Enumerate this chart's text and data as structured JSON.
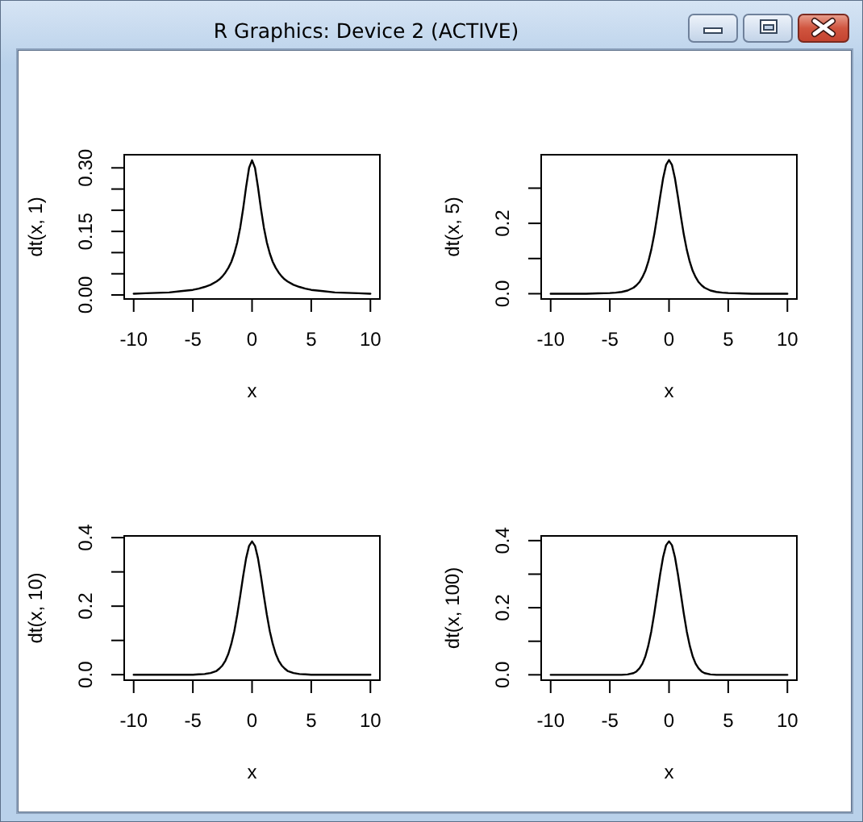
{
  "chart_data": [
    {
      "type": "other",
      "title": "R Graphics: Device 2 (ACTIVE)"
    },
    {
      "type": "line",
      "xlabel": "x",
      "ylabel": "dt(x, 1)",
      "color": "#000000",
      "xlim": [
        -10.8,
        10.8
      ],
      "ylim": [
        -0.0095,
        0.331
      ],
      "xticks": [
        -10,
        -5,
        0,
        5,
        10
      ],
      "yticks": [
        {
          "value": 0,
          "label": "0.00"
        },
        {
          "value": 0.05,
          "label": null
        },
        {
          "value": 0.1,
          "label": null
        },
        0.15,
        {
          "value": 0.2,
          "label": null
        },
        {
          "value": 0.25,
          "label": null
        },
        {
          "value": 0.3,
          "label": "0.30"
        }
      ],
      "x": [
        -10,
        -9,
        -8,
        -7,
        -6,
        -5,
        -4.5,
        -4,
        -3.5,
        -3,
        -2.75,
        -2.5,
        -2.25,
        -2,
        -1.75,
        -1.5,
        -1.25,
        -1,
        -0.75,
        -0.5,
        -0.25,
        0,
        0.25,
        0.5,
        0.75,
        1,
        1.25,
        1.5,
        1.75,
        2,
        2.25,
        2.5,
        2.75,
        3,
        3.5,
        4,
        4.5,
        5,
        6,
        7,
        8,
        9,
        10
      ],
      "values": [
        0.003,
        0.004,
        0.005,
        0.006,
        0.009,
        0.012,
        0.015,
        0.019,
        0.024,
        0.032,
        0.037,
        0.044,
        0.053,
        0.064,
        0.078,
        0.098,
        0.124,
        0.159,
        0.204,
        0.255,
        0.3,
        0.318,
        0.3,
        0.255,
        0.204,
        0.159,
        0.124,
        0.098,
        0.078,
        0.064,
        0.053,
        0.044,
        0.037,
        0.032,
        0.024,
        0.019,
        0.015,
        0.012,
        0.009,
        0.006,
        0.005,
        0.004,
        0.003
      ]
    },
    {
      "type": "line",
      "xlabel": "x",
      "ylabel": "dt(x, 5)",
      "color": "#000000",
      "xlim": [
        -10.8,
        10.8
      ],
      "ylim": [
        -0.015,
        0.395
      ],
      "xticks": [
        -10,
        -5,
        0,
        5,
        10
      ],
      "yticks": [
        {
          "value": 0,
          "label": "0.0"
        },
        {
          "value": 0.1,
          "label": null
        },
        0.2,
        {
          "value": 0.3,
          "label": null
        }
      ],
      "x": [
        -10,
        -9,
        -8,
        -7,
        -6,
        -5,
        -4.5,
        -4,
        -3.5,
        -3,
        -2.75,
        -2.5,
        -2.25,
        -2,
        -1.75,
        -1.5,
        -1.25,
        -1,
        -0.75,
        -0.5,
        -0.25,
        0,
        0.25,
        0.5,
        0.75,
        1,
        1.25,
        1.5,
        1.75,
        2,
        2.25,
        2.5,
        2.75,
        3,
        3.5,
        4,
        4.5,
        5,
        6,
        7,
        8,
        9,
        10
      ],
      "values": [
        0,
        0,
        0,
        0,
        0.001,
        0.002,
        0.003,
        0.005,
        0.009,
        0.017,
        0.024,
        0.033,
        0.047,
        0.065,
        0.091,
        0.125,
        0.168,
        0.22,
        0.276,
        0.328,
        0.366,
        0.38,
        0.366,
        0.328,
        0.276,
        0.22,
        0.168,
        0.125,
        0.091,
        0.065,
        0.047,
        0.033,
        0.024,
        0.017,
        0.009,
        0.005,
        0.003,
        0.002,
        0.001,
        0,
        0,
        0,
        0
      ]
    },
    {
      "type": "line",
      "xlabel": "x",
      "ylabel": "dt(x, 10)",
      "color": "#000000",
      "xlim": [
        -10.8,
        10.8
      ],
      "ylim": [
        -0.016,
        0.405
      ],
      "xticks": [
        -10,
        -5,
        0,
        5,
        10
      ],
      "yticks": [
        {
          "value": 0,
          "label": "0.0"
        },
        {
          "value": 0.1,
          "label": null
        },
        0.2,
        {
          "value": 0.3,
          "label": null
        },
        0.4
      ],
      "x": [
        -10,
        -9,
        -8,
        -7,
        -6,
        -5,
        -4.5,
        -4,
        -3.5,
        -3,
        -2.75,
        -2.5,
        -2.25,
        -2,
        -1.75,
        -1.5,
        -1.25,
        -1,
        -0.75,
        -0.5,
        -0.25,
        0,
        0.25,
        0.5,
        0.75,
        1,
        1.25,
        1.5,
        1.75,
        2,
        2.25,
        2.5,
        2.75,
        3,
        3.5,
        4,
        4.5,
        5,
        6,
        7,
        8,
        9,
        10
      ],
      "values": [
        0,
        0,
        0,
        0,
        0,
        0,
        0.001,
        0.002,
        0.005,
        0.011,
        0.018,
        0.027,
        0.041,
        0.061,
        0.09,
        0.127,
        0.175,
        0.23,
        0.288,
        0.34,
        0.376,
        0.389,
        0.376,
        0.34,
        0.288,
        0.23,
        0.175,
        0.127,
        0.09,
        0.061,
        0.041,
        0.027,
        0.018,
        0.011,
        0.005,
        0.002,
        0.001,
        0,
        0,
        0,
        0,
        0,
        0
      ]
    },
    {
      "type": "line",
      "xlabel": "x",
      "ylabel": "dt(x, 100)",
      "color": "#000000",
      "xlim": [
        -10.8,
        10.8
      ],
      "ylim": [
        -0.016,
        0.414
      ],
      "xticks": [
        -10,
        -5,
        0,
        5,
        10
      ],
      "yticks": [
        {
          "value": 0,
          "label": "0.0"
        },
        {
          "value": 0.1,
          "label": null
        },
        0.2,
        {
          "value": 0.3,
          "label": null
        },
        0.4
      ],
      "x": [
        -10,
        -9,
        -8,
        -7,
        -6,
        -5,
        -4.5,
        -4,
        -3.5,
        -3,
        -2.75,
        -2.5,
        -2.25,
        -2,
        -1.75,
        -1.5,
        -1.25,
        -1,
        -0.75,
        -0.5,
        -0.25,
        0,
        0.25,
        0.5,
        0.75,
        1,
        1.25,
        1.5,
        1.75,
        2,
        2.25,
        2.5,
        2.75,
        3,
        3.5,
        4,
        4.5,
        5,
        6,
        7,
        8,
        9,
        10
      ],
      "values": [
        0,
        0,
        0,
        0,
        0,
        0,
        0,
        0,
        0.001,
        0.005,
        0.01,
        0.019,
        0.033,
        0.055,
        0.087,
        0.129,
        0.182,
        0.241,
        0.3,
        0.351,
        0.386,
        0.398,
        0.386,
        0.351,
        0.3,
        0.241,
        0.182,
        0.129,
        0.087,
        0.055,
        0.033,
        0.019,
        0.01,
        0.005,
        0.001,
        0,
        0,
        0,
        0,
        0,
        0,
        0,
        0
      ]
    }
  ]
}
